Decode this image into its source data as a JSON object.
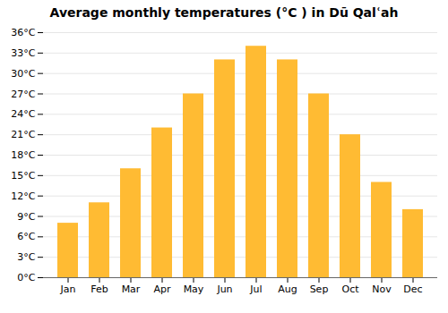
{
  "chart_data": {
    "type": "bar",
    "title": "Average monthly temperatures (°C ) in Dū Qalʿah",
    "categories": [
      "Jan",
      "Feb",
      "Mar",
      "Apr",
      "May",
      "Jun",
      "Jul",
      "Aug",
      "Sep",
      "Oct",
      "Nov",
      "Dec"
    ],
    "values": [
      8,
      11,
      16,
      22,
      27,
      32,
      34,
      32,
      27,
      21,
      14,
      10
    ],
    "color": "#FFBB33",
    "ylim": [
      0,
      36
    ],
    "yticks": [
      {
        "value": 0,
        "label": "0°C"
      },
      {
        "value": 3,
        "label": "3°C"
      },
      {
        "value": 6,
        "label": "6°C"
      },
      {
        "value": 9,
        "label": "9°C"
      },
      {
        "value": 12,
        "label": "12°C"
      },
      {
        "value": 15,
        "label": "15°C"
      },
      {
        "value": 18,
        "label": "18°C"
      },
      {
        "value": 21,
        "label": "21°C"
      },
      {
        "value": 24,
        "label": "24°C"
      },
      {
        "value": 27,
        "label": "27°C"
      },
      {
        "value": 30,
        "label": "30°C"
      },
      {
        "value": 33,
        "label": "33°C"
      },
      {
        "value": 36,
        "label": "36°C"
      }
    ],
    "grid": true
  }
}
